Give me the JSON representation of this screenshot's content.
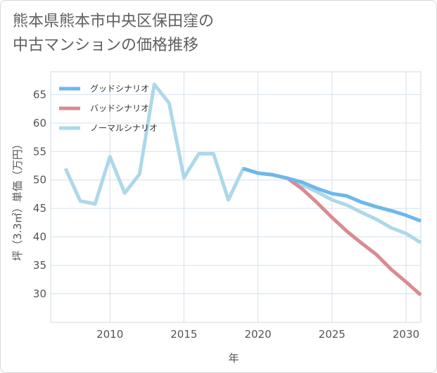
{
  "title_line1": "熊本県熊本市中央区保田窪の",
  "title_line2": "中古マンションの価格推移",
  "chart_data": {
    "type": "line",
    "xlabel": "年",
    "ylabel": "坪（3.3㎡）単価（万円）",
    "xlim": [
      2006,
      2031
    ],
    "ylim": [
      25,
      69
    ],
    "x_ticks": [
      2010,
      2015,
      2020,
      2025,
      2030
    ],
    "y_ticks": [
      30,
      35,
      40,
      45,
      50,
      55,
      60,
      65
    ],
    "legend_position": "top-left",
    "grid": true,
    "series": [
      {
        "name": "グッドシナリオ",
        "color": "#6cb8ec",
        "x": [
          2019,
          2020,
          2021,
          2022,
          2023,
          2024,
          2025,
          2026,
          2027,
          2028,
          2029,
          2030,
          2031
        ],
        "values": [
          52.0,
          51.2,
          50.9,
          50.3,
          49.6,
          48.5,
          47.6,
          47.2,
          46.1,
          45.3,
          44.6,
          43.8,
          42.8
        ]
      },
      {
        "name": "バッドシナリオ",
        "color": "#d98b91",
        "x": [
          2019,
          2020,
          2021,
          2022,
          2023,
          2024,
          2025,
          2026,
          2027,
          2028,
          2029,
          2030,
          2031
        ],
        "values": [
          52.0,
          51.2,
          50.9,
          50.3,
          48.4,
          46.0,
          43.4,
          41.0,
          38.9,
          36.9,
          34.3,
          32.1,
          29.8
        ]
      },
      {
        "name": "ノーマルシナリオ",
        "color": "#add8e9",
        "x": [
          2007,
          2008,
          2009,
          2010,
          2011,
          2012,
          2013,
          2014,
          2015,
          2016,
          2017,
          2018,
          2019,
          2020,
          2021,
          2022,
          2023,
          2024,
          2025,
          2026,
          2027,
          2028,
          2029,
          2030,
          2031
        ],
        "values": [
          52.0,
          46.3,
          45.8,
          54.1,
          47.7,
          51.0,
          66.8,
          63.5,
          50.4,
          54.6,
          54.6,
          46.5,
          52.0,
          51.2,
          50.9,
          50.3,
          49.1,
          47.9,
          46.5,
          45.6,
          44.3,
          43.1,
          41.6,
          40.6,
          39.0
        ]
      }
    ]
  }
}
